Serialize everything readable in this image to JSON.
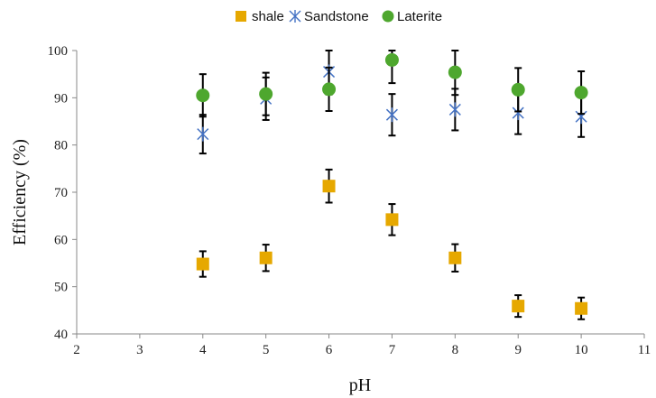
{
  "chart_data": {
    "type": "scatter",
    "xlabel": "pH",
    "ylabel": "Efficiency (%)",
    "xlim": [
      2,
      11
    ],
    "ylim": [
      40,
      100
    ],
    "xticks": [
      "2",
      "3",
      "4",
      "5",
      "6",
      "7",
      "8",
      "9",
      "10",
      "11"
    ],
    "yticks": [
      "40",
      "50",
      "60",
      "70",
      "80",
      "90",
      "100"
    ],
    "grid": false,
    "legend_position": "top",
    "x": [
      4,
      5,
      6,
      7,
      8,
      9,
      10
    ],
    "series": [
      {
        "name": "shale",
        "marker": "square",
        "color": "#E6A800",
        "values": [
          54.8,
          56.1,
          71.3,
          64.2,
          56.1,
          45.9,
          45.4
        ],
        "errors": [
          2.7,
          2.8,
          3.5,
          3.3,
          2.9,
          2.3,
          2.3
        ]
      },
      {
        "name": "Sandstone",
        "marker": "x",
        "color": "#4472C4",
        "values": [
          82.3,
          89.8,
          95.5,
          86.4,
          87.5,
          86.8,
          86.0
        ],
        "errors": [
          4.1,
          4.5,
          4.8,
          4.4,
          4.4,
          4.5,
          4.3
        ]
      },
      {
        "name": "Laterite",
        "marker": "circle",
        "color": "#4EA72E",
        "values": [
          90.5,
          90.8,
          91.8,
          98.0,
          95.4,
          91.7,
          91.1
        ],
        "errors": [
          4.5,
          4.5,
          4.6,
          4.9,
          4.8,
          4.6,
          4.5
        ]
      }
    ]
  }
}
